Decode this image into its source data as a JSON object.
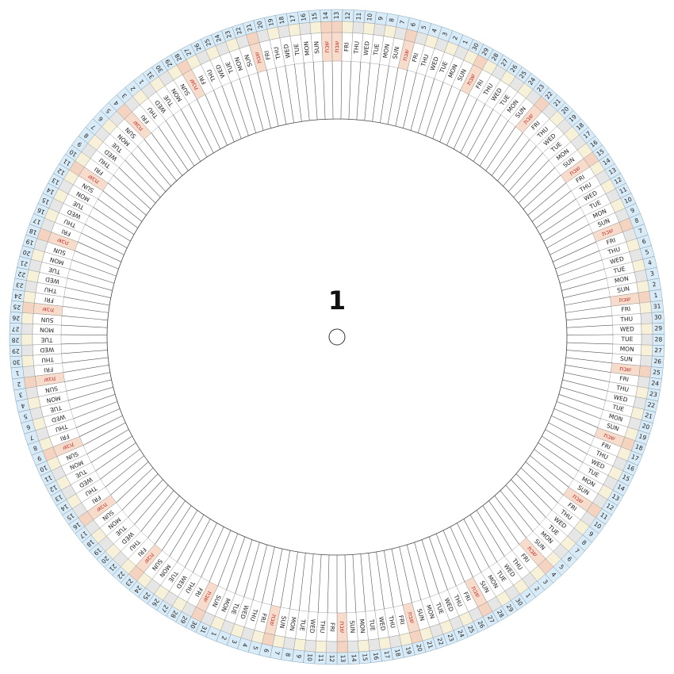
{
  "wheel_number": "1",
  "weekday_cycle": [
    "שבת",
    "FRI",
    "THU",
    "WED",
    "TUE",
    "MON",
    "SUN"
  ],
  "days": [
    13,
    12,
    11,
    10,
    9,
    8,
    7,
    6,
    5,
    4,
    3,
    2,
    1,
    30,
    29,
    28,
    27,
    26,
    25,
    24,
    23,
    22,
    21,
    20,
    19,
    18,
    17,
    16,
    15,
    14,
    13,
    12,
    11,
    10,
    9,
    8,
    7,
    6,
    5,
    4,
    3,
    2,
    1,
    31,
    30,
    29,
    28,
    27,
    26,
    25,
    24,
    23,
    22,
    21,
    20,
    19,
    18,
    17,
    16,
    15,
    14,
    13,
    12,
    11,
    10,
    9,
    8,
    7,
    6,
    5,
    4,
    3,
    2,
    1,
    30,
    29,
    28,
    27,
    26,
    25,
    24,
    23,
    22,
    21,
    20,
    19,
    18,
    17,
    16,
    15,
    14,
    13,
    12,
    11,
    10,
    9,
    8,
    7,
    6,
    5,
    4,
    3,
    2,
    1,
    31,
    30,
    29,
    28,
    27,
    26,
    25,
    24,
    23,
    22,
    21,
    20,
    19,
    18,
    17,
    16,
    15,
    14,
    13,
    12,
    11,
    10,
    9,
    8,
    7,
    6,
    5,
    4,
    3,
    2,
    1,
    30,
    29,
    28,
    27,
    26,
    25,
    24,
    23,
    22,
    21,
    20,
    19,
    18,
    17,
    16,
    15,
    14,
    13,
    12,
    11,
    10,
    9,
    8,
    7,
    6,
    5,
    4,
    3,
    2,
    1,
    31,
    30,
    29,
    28,
    27,
    26,
    25,
    24,
    23,
    22,
    21,
    20,
    19,
    18,
    17,
    16,
    15,
    14
  ]
}
